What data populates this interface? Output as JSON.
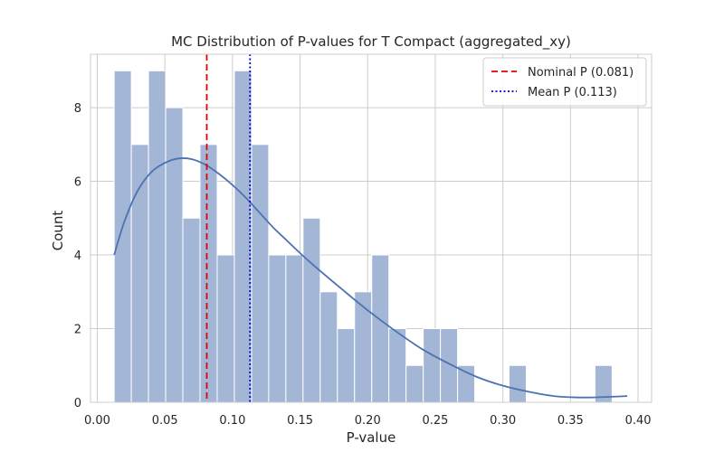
{
  "chart_data": {
    "type": "bar",
    "title": "MC Distribution of P-values for T Compact (aggregated_xy)",
    "xlabel": "P-value",
    "ylabel": "Count",
    "xlim": [
      -0.005,
      0.41
    ],
    "ylim": [
      0,
      9.45
    ],
    "grid": true,
    "legend_position": "top-right",
    "x_ticks": [
      0.0,
      0.05,
      0.1,
      0.15,
      0.2,
      0.25,
      0.3,
      0.35,
      0.4
    ],
    "x_tick_labels": [
      "0.00",
      "0.05",
      "0.10",
      "0.15",
      "0.20",
      "0.25",
      "0.30",
      "0.35",
      "0.40"
    ],
    "y_ticks": [
      0,
      2,
      4,
      6,
      8
    ],
    "y_tick_labels": [
      "0",
      "2",
      "4",
      "6",
      "8"
    ],
    "bins": {
      "start": 0.0125,
      "width": 0.0127,
      "counts": [
        9,
        7,
        9,
        8,
        5,
        7,
        4,
        9,
        7,
        4,
        4,
        5,
        3,
        2,
        3,
        4,
        2,
        1,
        2,
        2,
        1,
        0,
        0,
        1,
        0,
        0,
        0,
        0,
        1
      ]
    },
    "kde": {
      "x": [
        0.0125,
        0.02,
        0.03,
        0.04,
        0.05,
        0.06,
        0.07,
        0.08,
        0.09,
        0.1,
        0.11,
        0.12,
        0.13,
        0.14,
        0.15,
        0.16,
        0.18,
        0.2,
        0.22,
        0.24,
        0.26,
        0.28,
        0.3,
        0.32,
        0.34,
        0.36,
        0.38,
        0.392
      ],
      "y": [
        4.0,
        4.9,
        5.75,
        6.25,
        6.5,
        6.62,
        6.6,
        6.45,
        6.2,
        5.9,
        5.55,
        5.15,
        4.75,
        4.4,
        4.05,
        3.72,
        3.1,
        2.5,
        1.95,
        1.45,
        1.05,
        0.7,
        0.45,
        0.28,
        0.16,
        0.13,
        0.15,
        0.17
      ]
    },
    "vlines": [
      {
        "name": "Nominal P (0.081)",
        "x": 0.081,
        "color": "#e60000",
        "style": "dashed"
      },
      {
        "name": "Mean P (0.113)",
        "x": 0.113,
        "color": "#0000cc",
        "style": "dotted"
      }
    ],
    "colors": {
      "bar_fill": "#a3b6d6",
      "bar_edge": "#ffffff",
      "kde": "#4c72b0",
      "grid": "#cccccc",
      "spine": "#cccccc"
    }
  }
}
